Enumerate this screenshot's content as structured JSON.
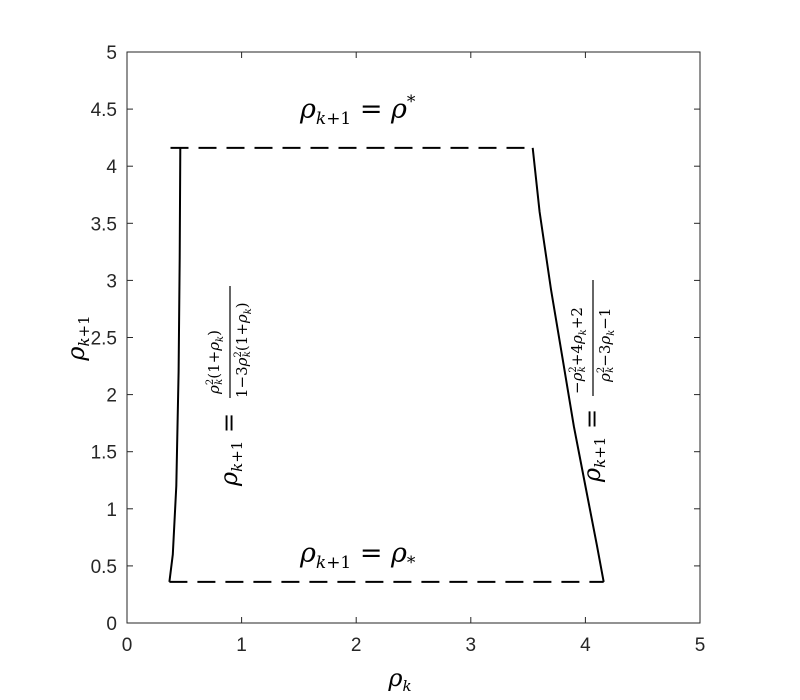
{
  "chart_data": {
    "type": "line",
    "xlabel": "ρk",
    "ylabel": "ρk+1",
    "xlim": [
      0,
      5
    ],
    "ylim": [
      0,
      5
    ],
    "x_ticks": [
      0,
      1,
      2,
      3,
      4,
      5
    ],
    "y_ticks": [
      0,
      0.5,
      1,
      1.5,
      2,
      2.5,
      3,
      3.5,
      4,
      4.5,
      5
    ],
    "x_tick_labels": [
      "0",
      "1",
      "2",
      "3",
      "4",
      "5"
    ],
    "y_tick_labels": [
      "0",
      "0.5",
      "1",
      "1.5",
      "2",
      "2.5",
      "3",
      "3.5",
      "4",
      "4.5",
      "5"
    ],
    "grid": false,
    "series": [
      {
        "style": "dashed",
        "color": "#000000",
        "points": [
          [
            0.38,
            4.16
          ],
          [
            3.54,
            4.16
          ]
        ]
      },
      {
        "style": "dashed",
        "color": "#000000",
        "points": [
          [
            0.37,
            0.36
          ],
          [
            4.16,
            0.36
          ]
        ]
      },
      {
        "style": "solid",
        "color": "#000000",
        "points": [
          [
            0.37,
            0.36
          ],
          [
            0.4,
            0.6
          ],
          [
            0.43,
            1.2
          ],
          [
            0.45,
            2.2
          ],
          [
            0.46,
            3.2
          ],
          [
            0.465,
            4.16
          ]
        ]
      },
      {
        "style": "solid",
        "color": "#000000",
        "points": [
          [
            3.54,
            4.16
          ],
          [
            3.6,
            3.6
          ],
          [
            3.7,
            2.92
          ],
          [
            3.8,
            2.32
          ],
          [
            3.9,
            1.72
          ],
          [
            4.0,
            1.2
          ],
          [
            4.1,
            0.68
          ],
          [
            4.16,
            0.36
          ]
        ]
      }
    ],
    "annotations": [
      {
        "text": "ρk+1 = ρ*",
        "latex": "\\rho_{k+1} = \\rho^*"
      },
      {
        "text": "ρk+1 = ρ*",
        "latex": "\\rho_{k+1} = \\rho_*"
      },
      {
        "text": "ρk+1 = ρk²(1+ρk) / (1−3ρk²(1+ρk))",
        "latex": "\\rho_{k+1} = \\frac{\\rho_k^2(1+\\rho_k)}{1-3\\rho_k^2(1+\\rho_k)}"
      },
      {
        "text": "ρk+1 = (−ρk²+4ρk+2) / (ρk²−3ρk−1)",
        "latex": "\\rho_{k+1} = \\frac{-\\rho_k^2+4\\rho_k+2}{\\rho_k^2-3\\rho_k-1}"
      }
    ]
  }
}
